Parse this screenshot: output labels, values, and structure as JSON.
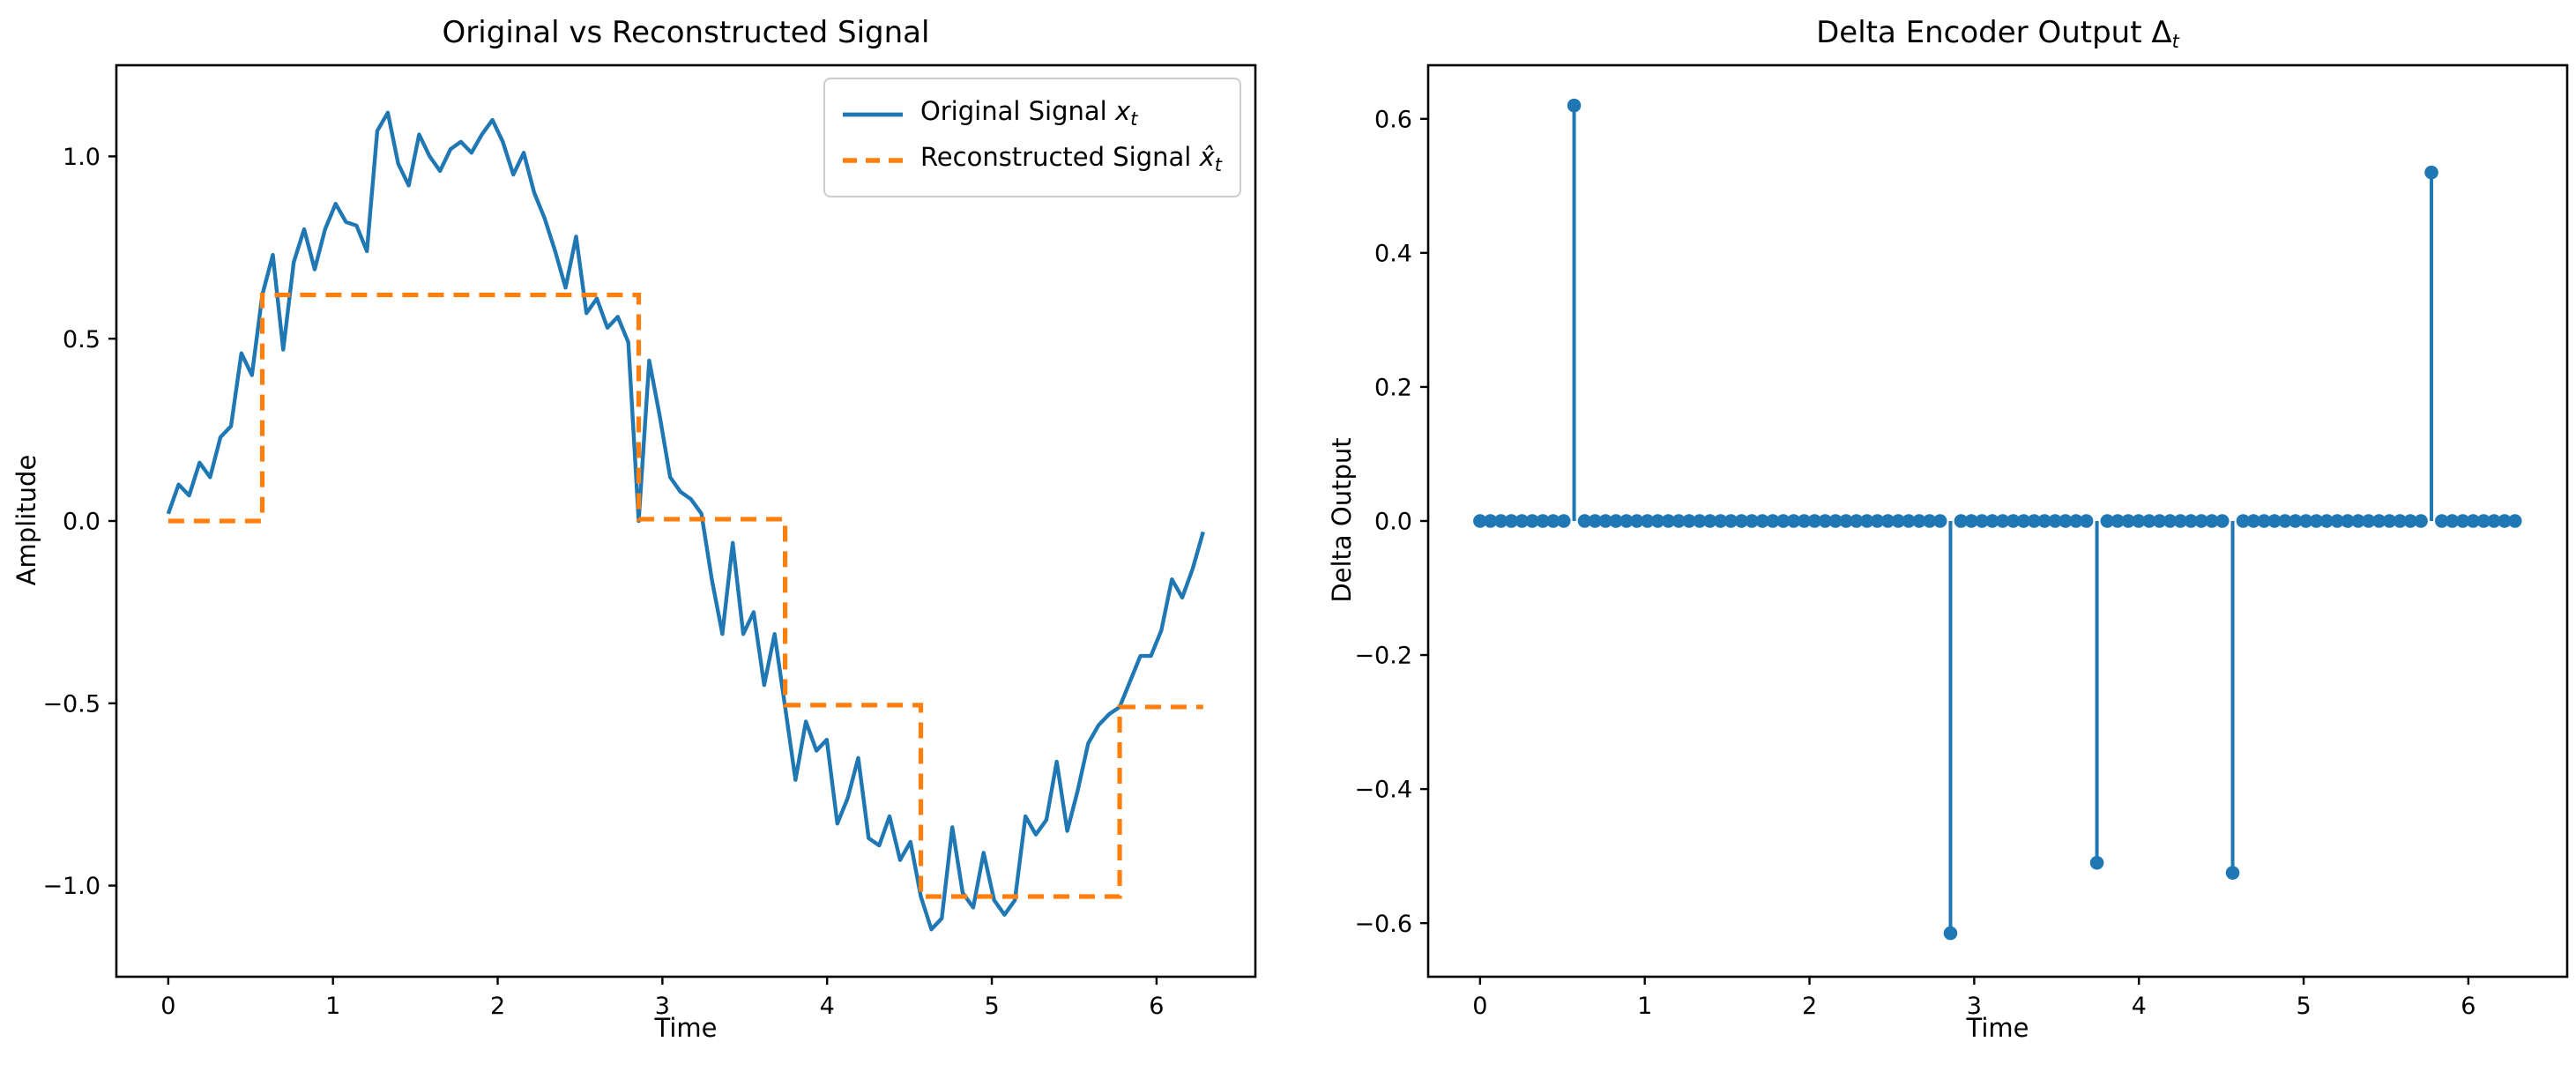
{
  "figure": {
    "background": "#ffffff",
    "accent_blue": "#1f77b4",
    "accent_orange": "#ff7f0e",
    "left_panel": {
      "title": "Original vs Reconstructed Signal",
      "xlabel": "Time",
      "ylabel": "Amplitude"
    },
    "right_panel": {
      "title_prefix": "Delta Encoder Output ",
      "title_var": "Δ",
      "title_sub": "t",
      "xlabel": "Time",
      "ylabel": "Delta Output"
    },
    "legend": {
      "entries": [
        {
          "prefix": "Original Signal ",
          "var": "x",
          "sub": "t",
          "color": "#1f77b4",
          "style": "solid"
        },
        {
          "prefix": "Reconstructed Signal ",
          "var": "x̂",
          "sub": "t",
          "color": "#ff7f0e",
          "style": "dashed"
        }
      ]
    }
  },
  "chart_data": [
    {
      "type": "line",
      "title": "Original vs Reconstructed Signal",
      "xlabel": "Time",
      "ylabel": "Amplitude",
      "xlim": [
        -0.315,
        6.6
      ],
      "ylim": [
        -1.25,
        1.25
      ],
      "xticks": [
        0,
        1,
        2,
        3,
        4,
        5,
        6
      ],
      "xtick_labels": [
        "0",
        "1",
        "2",
        "3",
        "4",
        "5",
        "6"
      ],
      "yticks": [
        1.0,
        0.5,
        0.0,
        -0.5,
        -1.0
      ],
      "ytick_labels": [
        "1.0",
        "0.5",
        "0.0",
        "−0.5",
        "−1.0"
      ],
      "grid": false,
      "legend_position": "upper right",
      "series": [
        {
          "name": "Original Signal x_t",
          "color": "#1f77b4",
          "style": "solid",
          "width": 2.2,
          "x": [
            0.0,
            0.063,
            0.127,
            0.19,
            0.254,
            0.317,
            0.381,
            0.444,
            0.508,
            0.571,
            0.635,
            0.698,
            0.762,
            0.825,
            0.889,
            0.952,
            1.016,
            1.079,
            1.143,
            1.206,
            1.269,
            1.333,
            1.396,
            1.46,
            1.523,
            1.587,
            1.65,
            1.714,
            1.777,
            1.841,
            1.904,
            1.968,
            2.031,
            2.095,
            2.158,
            2.222,
            2.285,
            2.349,
            2.412,
            2.476,
            2.539,
            2.602,
            2.666,
            2.729,
            2.793,
            2.856,
            2.92,
            2.983,
            3.047,
            3.11,
            3.173,
            3.237,
            3.3,
            3.364,
            3.427,
            3.491,
            3.554,
            3.618,
            3.681,
            3.745,
            3.808,
            3.871,
            3.935,
            3.998,
            4.062,
            4.125,
            4.189,
            4.252,
            4.316,
            4.379,
            4.443,
            4.506,
            4.569,
            4.633,
            4.696,
            4.76,
            4.823,
            4.887,
            4.95,
            5.014,
            5.077,
            5.14,
            5.204,
            5.267,
            5.331,
            5.394,
            5.458,
            5.521,
            5.585,
            5.648,
            5.712,
            5.776,
            5.839,
            5.902,
            5.966,
            6.029,
            6.093,
            6.156,
            6.22,
            6.283
          ],
          "y": [
            0.02,
            0.1,
            0.07,
            0.16,
            0.12,
            0.23,
            0.26,
            0.46,
            0.4,
            0.62,
            0.73,
            0.47,
            0.71,
            0.8,
            0.69,
            0.8,
            0.87,
            0.82,
            0.81,
            0.74,
            1.07,
            1.12,
            0.98,
            0.92,
            1.06,
            1.0,
            0.96,
            1.02,
            1.04,
            1.01,
            1.06,
            1.1,
            1.04,
            0.95,
            1.01,
            0.9,
            0.83,
            0.74,
            0.64,
            0.78,
            0.57,
            0.61,
            0.53,
            0.56,
            0.49,
            0.0,
            0.44,
            0.29,
            0.12,
            0.08,
            0.06,
            0.02,
            -0.16,
            -0.31,
            -0.06,
            -0.31,
            -0.25,
            -0.45,
            -0.31,
            -0.51,
            -0.71,
            -0.55,
            -0.63,
            -0.6,
            -0.83,
            -0.76,
            -0.65,
            -0.87,
            -0.89,
            -0.81,
            -0.93,
            -0.88,
            -1.03,
            -1.12,
            -1.09,
            -0.84,
            -1.02,
            -1.06,
            -0.91,
            -1.04,
            -1.08,
            -1.04,
            -0.81,
            -0.86,
            -0.82,
            -0.66,
            -0.85,
            -0.74,
            -0.61,
            -0.56,
            -0.53,
            -0.51,
            -0.44,
            -0.37,
            -0.37,
            -0.3,
            -0.16,
            -0.21,
            -0.13,
            -0.03
          ]
        },
        {
          "name": "Reconstructed Signal x-hat_t",
          "color": "#ff7f0e",
          "style": "dashed",
          "width": 2.6,
          "dash": [
            9,
            5.5
          ],
          "points": [
            [
              0.0,
              0.0
            ],
            [
              0.571,
              0.0
            ],
            [
              0.571,
              0.62
            ],
            [
              2.856,
              0.62
            ],
            [
              2.856,
              0.005
            ],
            [
              3.745,
              0.005
            ],
            [
              3.745,
              -0.505
            ],
            [
              4.569,
              -0.505
            ],
            [
              4.569,
              -1.03
            ],
            [
              5.776,
              -1.03
            ],
            [
              5.776,
              -0.51
            ],
            [
              6.283,
              -0.51
            ]
          ]
        }
      ]
    },
    {
      "type": "stem",
      "title": "Delta Encoder Output Δ_t",
      "xlabel": "Time",
      "ylabel": "Delta Output",
      "xlim": [
        -0.315,
        6.6
      ],
      "ylim": [
        -0.68,
        0.68
      ],
      "xticks": [
        0,
        1,
        2,
        3,
        4,
        5,
        6
      ],
      "xtick_labels": [
        "0",
        "1",
        "2",
        "3",
        "4",
        "5",
        "6"
      ],
      "yticks": [
        0.6,
        0.4,
        0.2,
        0.0,
        -0.2,
        -0.4,
        -0.6
      ],
      "ytick_labels": [
        "0.6",
        "0.4",
        "0.2",
        "0.0",
        "−0.2",
        "−0.4",
        "−0.6"
      ],
      "grid": false,
      "marker_color": "#1f77b4",
      "stem_color": "#1f77b4",
      "marker_radius": 3.9,
      "stem_width": 2.0,
      "x": [
        0.0,
        0.063,
        0.127,
        0.19,
        0.254,
        0.317,
        0.381,
        0.444,
        0.508,
        0.571,
        0.635,
        0.698,
        0.762,
        0.825,
        0.889,
        0.952,
        1.016,
        1.079,
        1.143,
        1.206,
        1.269,
        1.333,
        1.396,
        1.46,
        1.523,
        1.587,
        1.65,
        1.714,
        1.777,
        1.841,
        1.904,
        1.968,
        2.031,
        2.095,
        2.158,
        2.222,
        2.285,
        2.349,
        2.412,
        2.476,
        2.539,
        2.602,
        2.666,
        2.729,
        2.793,
        2.856,
        2.92,
        2.983,
        3.047,
        3.11,
        3.173,
        3.237,
        3.3,
        3.364,
        3.427,
        3.491,
        3.554,
        3.618,
        3.681,
        3.745,
        3.808,
        3.871,
        3.935,
        3.998,
        4.062,
        4.125,
        4.189,
        4.252,
        4.316,
        4.379,
        4.443,
        4.506,
        4.569,
        4.633,
        4.696,
        4.76,
        4.823,
        4.887,
        4.95,
        5.014,
        5.077,
        5.14,
        5.204,
        5.267,
        5.331,
        5.394,
        5.458,
        5.521,
        5.585,
        5.648,
        5.712,
        5.776,
        5.839,
        5.902,
        5.966,
        6.029,
        6.093,
        6.156,
        6.22,
        6.283
      ],
      "values": [
        0,
        0,
        0,
        0,
        0,
        0,
        0,
        0,
        0,
        0.62,
        0,
        0,
        0,
        0,
        0,
        0,
        0,
        0,
        0,
        0,
        0,
        0,
        0,
        0,
        0,
        0,
        0,
        0,
        0,
        0,
        0,
        0,
        0,
        0,
        0,
        0,
        0,
        0,
        0,
        0,
        0,
        0,
        0,
        0,
        0,
        -0.615,
        0,
        0,
        0,
        0,
        0,
        0,
        0,
        0,
        0,
        0,
        0,
        0,
        0,
        -0.51,
        0,
        0,
        0,
        0,
        0,
        0,
        0,
        0,
        0,
        0,
        0,
        0,
        -0.525,
        0,
        0,
        0,
        0,
        0,
        0,
        0,
        0,
        0,
        0,
        0,
        0,
        0,
        0,
        0,
        0,
        0,
        0,
        0.52,
        0,
        0,
        0,
        0,
        0,
        0,
        0,
        0
      ]
    }
  ]
}
